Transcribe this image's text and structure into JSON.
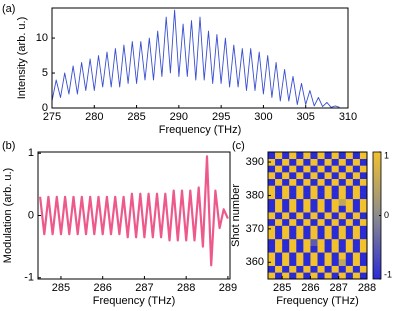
{
  "chart_data": [
    {
      "type": "line",
      "label": "(a)",
      "xlabel": "Frequency (THz)",
      "ylabel": "Intensity (arb. u.)",
      "color": "#3a4fd0",
      "x": [
        275,
        275.5,
        276,
        276.5,
        277,
        277.5,
        278,
        278.5,
        279,
        279.5,
        280,
        280.5,
        281,
        281.5,
        282,
        282.5,
        283,
        283.5,
        284,
        284.5,
        285,
        285.5,
        286,
        286.5,
        287,
        287.5,
        288,
        288.5,
        289,
        289.5,
        290,
        290.5,
        291,
        291.5,
        292,
        292.5,
        293,
        293.5,
        294,
        294.5,
        295,
        295.5,
        296,
        296.5,
        297,
        297.5,
        298,
        298.5,
        299,
        299.5,
        300,
        300.5,
        301,
        301.5,
        302,
        302.5,
        303,
        303.5,
        304,
        304.5,
        305,
        305.5,
        306,
        306.5,
        307,
        307.5,
        308,
        308.5,
        309
      ],
      "values": [
        1,
        4,
        1.5,
        5,
        2,
        6,
        2,
        6.5,
        2.5,
        7,
        2.5,
        7.5,
        3,
        8,
        3,
        8.5,
        3,
        9,
        3.5,
        9.5,
        3.5,
        9.5,
        4,
        10,
        4,
        11,
        4.5,
        13,
        5,
        14,
        4.5,
        12,
        4.5,
        12.5,
        4,
        13,
        4,
        11,
        3.5,
        10.5,
        3.5,
        10,
        3,
        9,
        3,
        8.5,
        2.5,
        8.5,
        2.5,
        8,
        2,
        7.5,
        1.5,
        6.5,
        1,
        5.5,
        1,
        4.5,
        0.5,
        3.5,
        0.5,
        2.5,
        0.3,
        1.5,
        0.2,
        0.8,
        0.1,
        0.3,
        0.1
      ],
      "xlim": [
        275,
        310
      ],
      "xticks": [
        275,
        280,
        285,
        290,
        295,
        300,
        305,
        310
      ],
      "ylim": [
        0,
        14.3
      ],
      "yticks": [
        0,
        5,
        10
      ]
    },
    {
      "type": "line",
      "label": "(b)",
      "xlabel": "Frequency (THz)",
      "ylabel": "Modulation (arb. u.)",
      "color": "#e8306e",
      "x": [
        284.5,
        284.6,
        284.7,
        284.8,
        284.9,
        285,
        285.1,
        285.2,
        285.3,
        285.4,
        285.5,
        285.6,
        285.7,
        285.8,
        285.9,
        286,
        286.1,
        286.2,
        286.3,
        286.4,
        286.5,
        286.6,
        286.7,
        286.8,
        286.9,
        287,
        287.1,
        287.2,
        287.3,
        287.4,
        287.5,
        287.6,
        287.7,
        287.8,
        287.9,
        288,
        288.1,
        288.2,
        288.3,
        288.4,
        288.5,
        288.6,
        288.7,
        288.8,
        288.9,
        289
      ],
      "values": [
        0.3,
        -0.3,
        0.3,
        -0.3,
        0.3,
        -0.3,
        0.3,
        -0.3,
        0.3,
        -0.3,
        0.3,
        -0.3,
        0.3,
        -0.3,
        0.3,
        -0.3,
        0.3,
        -0.3,
        0.3,
        -0.3,
        0.3,
        -0.35,
        0.35,
        -0.35,
        0.35,
        -0.35,
        0.35,
        -0.35,
        0.35,
        -0.35,
        0.35,
        -0.4,
        0.4,
        -0.4,
        0.4,
        -0.4,
        0.4,
        -0.4,
        0.45,
        -0.5,
        0.95,
        -0.8,
        0.4,
        -0.2,
        0.1,
        -0.05
      ],
      "xlim": [
        284.45,
        289.05
      ],
      "xticks": [
        285,
        286,
        287,
        288,
        289
      ],
      "ylim": [
        -1.02,
        1.02
      ],
      "yticks": [
        -1,
        0,
        1
      ]
    },
    {
      "type": "heatmap",
      "label": "(c)",
      "xlabel": "Frequency (THz)",
      "ylabel": "Shot number",
      "xlim": [
        284.5,
        288
      ],
      "xticks": [
        285,
        286,
        287,
        288
      ],
      "ylim": [
        355,
        393
      ],
      "yticks": [
        360,
        370,
        380,
        390
      ],
      "zlim": [
        -1,
        1
      ],
      "zticks": [
        -1,
        0,
        1
      ],
      "colorscale": [
        "#2b2bd6",
        "#8c8c8c",
        "#f2c12e"
      ],
      "z": [
        [
          1,
          -1,
          1,
          -1,
          1,
          -1,
          1,
          -1,
          1,
          -1,
          1,
          -1,
          1,
          -1
        ],
        [
          -1,
          1,
          -1,
          1,
          -1,
          1,
          -1,
          1,
          -1,
          1,
          -1,
          1,
          -1,
          1
        ],
        [
          1,
          -1,
          1,
          -1,
          1,
          -1,
          1,
          -1,
          1,
          -1,
          0.5,
          -1,
          1,
          -1
        ],
        [
          1,
          -1,
          1,
          -1,
          1,
          -1,
          1,
          -1,
          1,
          -1,
          1,
          -1,
          1,
          -1
        ],
        [
          -1,
          1,
          -1,
          1,
          -1,
          1,
          -1,
          1,
          -1,
          1,
          -1,
          1,
          -1,
          1
        ],
        [
          -1,
          1,
          -1,
          1,
          -1,
          1,
          -0.5,
          1,
          -1,
          1,
          -1,
          1,
          -1,
          1
        ],
        [
          1,
          -1,
          1,
          -1,
          1,
          -1,
          1,
          -1,
          1,
          -1,
          1,
          -1,
          1,
          -1
        ],
        [
          1,
          -1,
          1,
          -1,
          1,
          -1,
          1,
          -1,
          1,
          -1,
          1,
          -1,
          1,
          -1
        ],
        [
          -1,
          1,
          -1,
          1,
          -1,
          1,
          -1,
          1,
          -1,
          1,
          -1,
          1,
          -1,
          1
        ],
        [
          1,
          -1,
          1,
          -1,
          1,
          -1,
          1,
          -1,
          1,
          -1,
          1,
          -1,
          1,
          -1
        ],
        [
          -1,
          1,
          -1,
          1,
          -1,
          1,
          -1,
          1,
          -1,
          1,
          -1,
          1,
          -1,
          1
        ],
        [
          -1,
          1,
          -1,
          1,
          -1,
          1,
          -1,
          1,
          -1,
          1,
          0.5,
          1,
          -1,
          1
        ],
        [
          1,
          -1,
          1,
          -1,
          1,
          -1,
          1,
          -1,
          1,
          -1,
          1,
          -1,
          1,
          -1
        ],
        [
          1,
          -1,
          1,
          -1,
          1,
          -1,
          1,
          -1,
          1,
          -1,
          1,
          -1,
          1,
          -1
        ],
        [
          -1,
          1,
          -1,
          1,
          -1,
          1,
          -1,
          1,
          -1,
          1,
          -1,
          1,
          -1,
          1
        ],
        [
          1,
          -1,
          1,
          -1,
          1,
          -1,
          1,
          -1,
          1,
          -1,
          1,
          -1,
          1,
          -1
        ],
        [
          -1,
          1,
          -1,
          1,
          -1,
          1,
          -1,
          1,
          -1,
          1,
          -1,
          1,
          -1,
          1
        ],
        [
          1,
          -1,
          1,
          -1,
          1,
          -1,
          1,
          -1,
          1,
          -1,
          1,
          -1,
          1,
          -1
        ],
        [
          -1,
          1,
          -1,
          1,
          -1,
          1,
          -1,
          1,
          -1,
          1,
          -1,
          1,
          -1,
          1
        ]
      ]
    }
  ]
}
